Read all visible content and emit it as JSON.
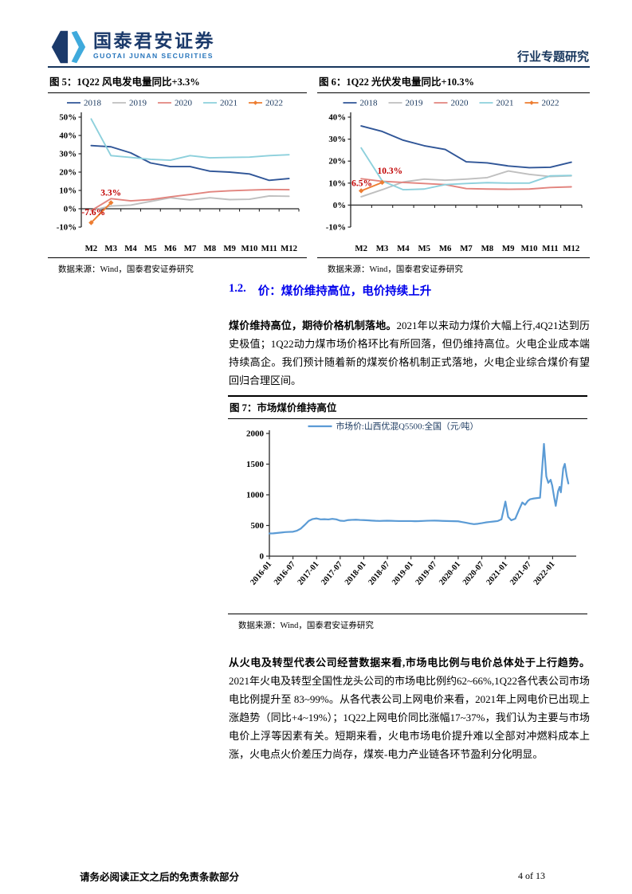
{
  "header": {
    "logo_cn": "国泰君安证券",
    "logo_en": "GUOTAI JUNAN SECURITIES",
    "report_type": "行业专题研究"
  },
  "section": {
    "number": "1.2.",
    "title": "价：煤价维持高位，电价持续上升"
  },
  "para1": {
    "lead": "煤价维持高位，期待价格机制落地。",
    "body": "2021年以来动力煤价大幅上行,4Q21达到历史极值；1Q22动力煤市场价格环比有所回落，但仍维持高位。火电企业成本端持续高企。我们预计随着新的煤炭价格机制正式落地，火电企业综合煤价有望回归合理区间。"
  },
  "para2": {
    "lead": "从火电及转型代表公司经营数据来看,市场电比例与电价总体处于上行趋势。",
    "body": "2021年火电及转型全国性龙头公司的市场电比例约62~66%,1Q22各代表公司市场电比例提升至 83~99%。从各代表公司上网电价来看，2021年上网电价已出现上涨趋势（同比+4~19%）；1Q22上网电价同比涨幅17~37%，我们认为主要与市场电价上浮等因素有关。短期来看，火电市场电价提升难以全部对冲燃料成本上涨，火电点火价差压力尚存，煤炭-电力产业链各环节盈利分化明显。"
  },
  "figures": {
    "fig5": {
      "title": "图 5：1Q22 风电发电量同比+3.3%",
      "source": "数据来源：Wind，国泰君安证券研究"
    },
    "fig6": {
      "title": "图 6：1Q22 光伏发电量同比+10.3%",
      "source": "数据来源：Wind，国泰君安证券研究"
    },
    "fig7": {
      "title": "图 7：市场煤价维持高位",
      "source": "数据来源：Wind，国泰君安证券研究"
    }
  },
  "footer": {
    "disclaimer": "请务必阅读正文之后的免责条款部分",
    "page": "4 of 13"
  },
  "chart_data": [
    {
      "id": "fig5",
      "type": "line",
      "variant": "yoy",
      "title": "1Q22风电发电量同比+3.3%",
      "categories": [
        "M2",
        "M3",
        "M4",
        "M5",
        "M6",
        "M7",
        "M8",
        "M9",
        "M10",
        "M11",
        "M12"
      ],
      "ylim": [
        -10,
        50
      ],
      "ystep": 10,
      "yformat": "percent",
      "legend_position": "top",
      "grid": false,
      "series": [
        {
          "name": "2018",
          "color": "#2F5597",
          "values": [
            34.5,
            33.8,
            30.5,
            25,
            23,
            23,
            20.5,
            20,
            19,
            15.5,
            16.5
          ]
        },
        {
          "name": "2019",
          "color": "#BFBFBF",
          "values": [
            -1,
            1.5,
            2,
            4,
            6,
            4.8,
            6,
            5,
            5.2,
            7,
            6.8
          ]
        },
        {
          "name": "2020",
          "color": "#E2847E",
          "values": [
            -1,
            5.5,
            4.3,
            5,
            6.5,
            7.8,
            9.2,
            9.8,
            10.2,
            10.5,
            10.4
          ]
        },
        {
          "name": "2021",
          "color": "#8DD0DC",
          "values": [
            49,
            29,
            28,
            27,
            26.5,
            29,
            27.8,
            28,
            28.2,
            29,
            29.5
          ]
        },
        {
          "name": "2022",
          "color": "#ED7D31",
          "marker": "diamond",
          "values": [
            -7.6,
            3.3
          ]
        }
      ],
      "annotations": [
        {
          "text": "3.3%",
          "xi": 1,
          "y": 7.2,
          "dx": 0,
          "anchor": "middle",
          "color": "#C00000"
        },
        {
          "text": "-7.6%",
          "xi": 0,
          "y": -3.5,
          "dx": -12,
          "anchor": "start",
          "color": "#C00000"
        }
      ]
    },
    {
      "id": "fig6",
      "type": "line",
      "variant": "yoy",
      "title": "1Q22光伏发电量同比+10.3%",
      "categories": [
        "M2",
        "M3",
        "M4",
        "M5",
        "M6",
        "M7",
        "M8",
        "M9",
        "M10",
        "M11",
        "M12"
      ],
      "ylim": [
        -10,
        40
      ],
      "ystep": 10,
      "yformat": "percent",
      "legend_position": "top",
      "grid": false,
      "series": [
        {
          "name": "2018",
          "color": "#2F5597",
          "values": [
            36,
            33.5,
            29.5,
            27,
            25.3,
            19.7,
            19.2,
            17.8,
            17,
            17.2,
            19.5
          ]
        },
        {
          "name": "2019",
          "color": "#BFBFBF",
          "values": [
            3.8,
            7,
            10.5,
            11.8,
            11.3,
            11.8,
            12.5,
            15.5,
            14,
            13,
            13.3
          ]
        },
        {
          "name": "2020",
          "color": "#E2847E",
          "values": [
            12,
            10.8,
            10.3,
            9.8,
            9.3,
            7.5,
            7.3,
            7.2,
            7.3,
            8,
            8.3
          ]
        },
        {
          "name": "2021",
          "color": "#8DD0DC",
          "values": [
            26,
            11,
            7,
            7.3,
            9.3,
            9.8,
            10.2,
            10,
            10,
            13.3,
            13.5
          ]
        },
        {
          "name": "2022",
          "color": "#ED7D31",
          "marker": "diamond",
          "values": [
            6.5,
            10.3
          ]
        }
      ],
      "annotations": [
        {
          "text": "10.3%",
          "xi": 1,
          "y": 14.2,
          "dx": -6,
          "anchor": "start",
          "color": "#C00000"
        },
        {
          "text": "6.5%",
          "xi": 0,
          "y": 8.7,
          "dx": -12,
          "anchor": "start",
          "color": "#C00000"
        }
      ]
    },
    {
      "id": "fig7",
      "type": "line",
      "variant": "timeseries",
      "title": "市场煤价维持高位",
      "series_name": "市场价:山西优混Q5500:全国（元/吨）",
      "color": "#5B9BD5",
      "ylim": [
        0,
        2000
      ],
      "ystep": 500,
      "xmax": 78,
      "x_unit": "months since 2016-01",
      "xtick_positions": [
        0,
        6,
        12,
        18,
        24,
        30,
        36,
        42,
        48,
        54,
        60,
        66,
        72
      ],
      "xtick_labels": [
        "2016-01",
        "2016-07",
        "2017-01",
        "2017-07",
        "2018-01",
        "2018-07",
        "2019-01",
        "2019-07",
        "2020-01",
        "2020-07",
        "2021-01",
        "2021-07",
        "2022-01"
      ],
      "points": [
        [
          0,
          370
        ],
        [
          1,
          372
        ],
        [
          2,
          378
        ],
        [
          3,
          385
        ],
        [
          4,
          392
        ],
        [
          5,
          395
        ],
        [
          6,
          398
        ],
        [
          7,
          415
        ],
        [
          8,
          450
        ],
        [
          9,
          510
        ],
        [
          10,
          575
        ],
        [
          11,
          605
        ],
        [
          12,
          615
        ],
        [
          13,
          600
        ],
        [
          14,
          602
        ],
        [
          15,
          598
        ],
        [
          16,
          608
        ],
        [
          17,
          600
        ],
        [
          18,
          578
        ],
        [
          19,
          574
        ],
        [
          20,
          588
        ],
        [
          21,
          592
        ],
        [
          22,
          594
        ],
        [
          23,
          590
        ],
        [
          24,
          588
        ],
        [
          25,
          584
        ],
        [
          26,
          580
        ],
        [
          27,
          576
        ],
        [
          28,
          574
        ],
        [
          29,
          576
        ],
        [
          30,
          578
        ],
        [
          31,
          576
        ],
        [
          32,
          574
        ],
        [
          33,
          572
        ],
        [
          34,
          572
        ],
        [
          35,
          572
        ],
        [
          36,
          572
        ],
        [
          37,
          570
        ],
        [
          38,
          571
        ],
        [
          39,
          574
        ],
        [
          40,
          577
        ],
        [
          41,
          579
        ],
        [
          42,
          580
        ],
        [
          43,
          578
        ],
        [
          44,
          575
        ],
        [
          45,
          573
        ],
        [
          46,
          571
        ],
        [
          47,
          570
        ],
        [
          48,
          568
        ],
        [
          49,
          556
        ],
        [
          50,
          545
        ],
        [
          51,
          532
        ],
        [
          52,
          522
        ],
        [
          53,
          528
        ],
        [
          54,
          538
        ],
        [
          55,
          550
        ],
        [
          56,
          558
        ],
        [
          57,
          565
        ],
        [
          58,
          572
        ],
        [
          59,
          600
        ],
        [
          60,
          890
        ],
        [
          60.7,
          640
        ],
        [
          61.5,
          585
        ],
        [
          62.5,
          610
        ],
        [
          63.5,
          760
        ],
        [
          64.3,
          875
        ],
        [
          65,
          838
        ],
        [
          65.7,
          900
        ],
        [
          66.3,
          928
        ],
        [
          67.2,
          940
        ],
        [
          68.2,
          948
        ],
        [
          68.8,
          952
        ],
        [
          69.8,
          1830
        ],
        [
          70.4,
          1300
        ],
        [
          70.9,
          1195
        ],
        [
          71.5,
          1245
        ],
        [
          71.9,
          1150
        ],
        [
          72.4,
          955
        ],
        [
          72.8,
          820
        ],
        [
          73.4,
          1060
        ],
        [
          73.8,
          1130
        ],
        [
          74.1,
          1040
        ],
        [
          74.7,
          1430
        ],
        [
          75.1,
          1505
        ],
        [
          75.6,
          1300
        ],
        [
          76,
          1185
        ]
      ]
    }
  ],
  "colors": {
    "brand_navy": "#17365D",
    "heading_blue": "#0000EC",
    "annotation_red": "#C00000",
    "coal_line_blue": "#5B9BD5"
  }
}
